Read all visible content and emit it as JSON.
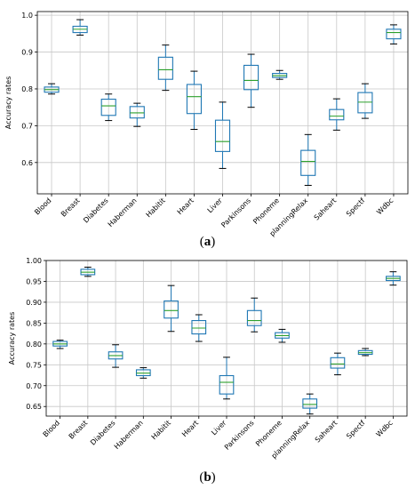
{
  "chart_data": [
    {
      "type": "box",
      "caption_prefix": "(",
      "caption_letter": "a",
      "caption_suffix": ")",
      "ylabel": "Accuracy rates",
      "ylim": [
        0.515,
        1.01
      ],
      "yticks": [
        "0.6",
        "0.7",
        "0.8",
        "0.9",
        "1.0"
      ],
      "grid": true,
      "box_color": "#1f77b4",
      "median_color": "#2ca02c",
      "categories": [
        "Blood",
        "Breast",
        "Diabetes",
        "Haberman",
        "Habitit",
        "Heart",
        "Liver",
        "Parkinsons",
        "Phoneme",
        "planningRelax",
        "Saheart",
        "Spectf",
        "Wdbc"
      ],
      "boxes": [
        {
          "whislo": 0.786,
          "q1": 0.791,
          "med": 0.798,
          "q3": 0.805,
          "whishi": 0.814
        },
        {
          "whislo": 0.946,
          "q1": 0.953,
          "med": 0.962,
          "q3": 0.97,
          "whishi": 0.988
        },
        {
          "whislo": 0.714,
          "q1": 0.728,
          "med": 0.754,
          "q3": 0.772,
          "whishi": 0.786
        },
        {
          "whislo": 0.698,
          "q1": 0.721,
          "med": 0.735,
          "q3": 0.752,
          "whishi": 0.761
        },
        {
          "whislo": 0.796,
          "q1": 0.826,
          "med": 0.852,
          "q3": 0.886,
          "whishi": 0.919
        },
        {
          "whislo": 0.69,
          "q1": 0.733,
          "med": 0.779,
          "q3": 0.812,
          "whishi": 0.848
        },
        {
          "whislo": 0.584,
          "q1": 0.63,
          "med": 0.657,
          "q3": 0.715,
          "whishi": 0.764
        },
        {
          "whislo": 0.75,
          "q1": 0.798,
          "med": 0.823,
          "q3": 0.864,
          "whishi": 0.894
        },
        {
          "whislo": 0.826,
          "q1": 0.831,
          "med": 0.836,
          "q3": 0.842,
          "whishi": 0.85
        },
        {
          "whislo": 0.538,
          "q1": 0.565,
          "med": 0.603,
          "q3": 0.633,
          "whishi": 0.676
        },
        {
          "whislo": 0.688,
          "q1": 0.716,
          "med": 0.726,
          "q3": 0.744,
          "whishi": 0.773
        },
        {
          "whislo": 0.72,
          "q1": 0.735,
          "med": 0.764,
          "q3": 0.79,
          "whishi": 0.814
        },
        {
          "whislo": 0.922,
          "q1": 0.936,
          "med": 0.953,
          "q3": 0.962,
          "whishi": 0.974
        }
      ]
    },
    {
      "type": "box",
      "caption_prefix": "(",
      "caption_letter": "b",
      "caption_suffix": ")",
      "ylabel": "Accuracy rates",
      "ylim": [
        0.627,
        1.0
      ],
      "yticks": [
        "0.65",
        "0.70",
        "0.75",
        "0.80",
        "0.85",
        "0.90",
        "0.95",
        "1.00"
      ],
      "grid": true,
      "box_color": "#1f77b4",
      "median_color": "#2ca02c",
      "categories": [
        "Blood",
        "Breast",
        "Diabetes",
        "Haberman",
        "Habitit",
        "Heart",
        "Liver",
        "Parkinsons",
        "Phoneme",
        "planningRelax",
        "Saheart",
        "Spectf",
        "Wdbc"
      ],
      "boxes": [
        {
          "whislo": 0.789,
          "q1": 0.795,
          "med": 0.8,
          "q3": 0.806,
          "whishi": 0.809
        },
        {
          "whislo": 0.962,
          "q1": 0.966,
          "med": 0.972,
          "q3": 0.979,
          "whishi": 0.984
        },
        {
          "whislo": 0.744,
          "q1": 0.764,
          "med": 0.772,
          "q3": 0.781,
          "whishi": 0.798
        },
        {
          "whislo": 0.718,
          "q1": 0.724,
          "med": 0.73,
          "q3": 0.738,
          "whishi": 0.743
        },
        {
          "whislo": 0.83,
          "q1": 0.862,
          "med": 0.88,
          "q3": 0.903,
          "whishi": 0.94
        },
        {
          "whislo": 0.806,
          "q1": 0.824,
          "med": 0.838,
          "q3": 0.856,
          "whishi": 0.87
        },
        {
          "whislo": 0.668,
          "q1": 0.68,
          "med": 0.708,
          "q3": 0.724,
          "whishi": 0.768
        },
        {
          "whislo": 0.829,
          "q1": 0.844,
          "med": 0.856,
          "q3": 0.88,
          "whishi": 0.91
        },
        {
          "whislo": 0.804,
          "q1": 0.814,
          "med": 0.82,
          "q3": 0.827,
          "whishi": 0.835
        },
        {
          "whislo": 0.632,
          "q1": 0.646,
          "med": 0.655,
          "q3": 0.668,
          "whishi": 0.68
        },
        {
          "whislo": 0.726,
          "q1": 0.742,
          "med": 0.752,
          "q3": 0.767,
          "whishi": 0.778
        },
        {
          "whislo": 0.772,
          "q1": 0.775,
          "med": 0.779,
          "q3": 0.784,
          "whishi": 0.789
        },
        {
          "whislo": 0.941,
          "q1": 0.952,
          "med": 0.957,
          "q3": 0.962,
          "whishi": 0.973
        }
      ]
    }
  ]
}
